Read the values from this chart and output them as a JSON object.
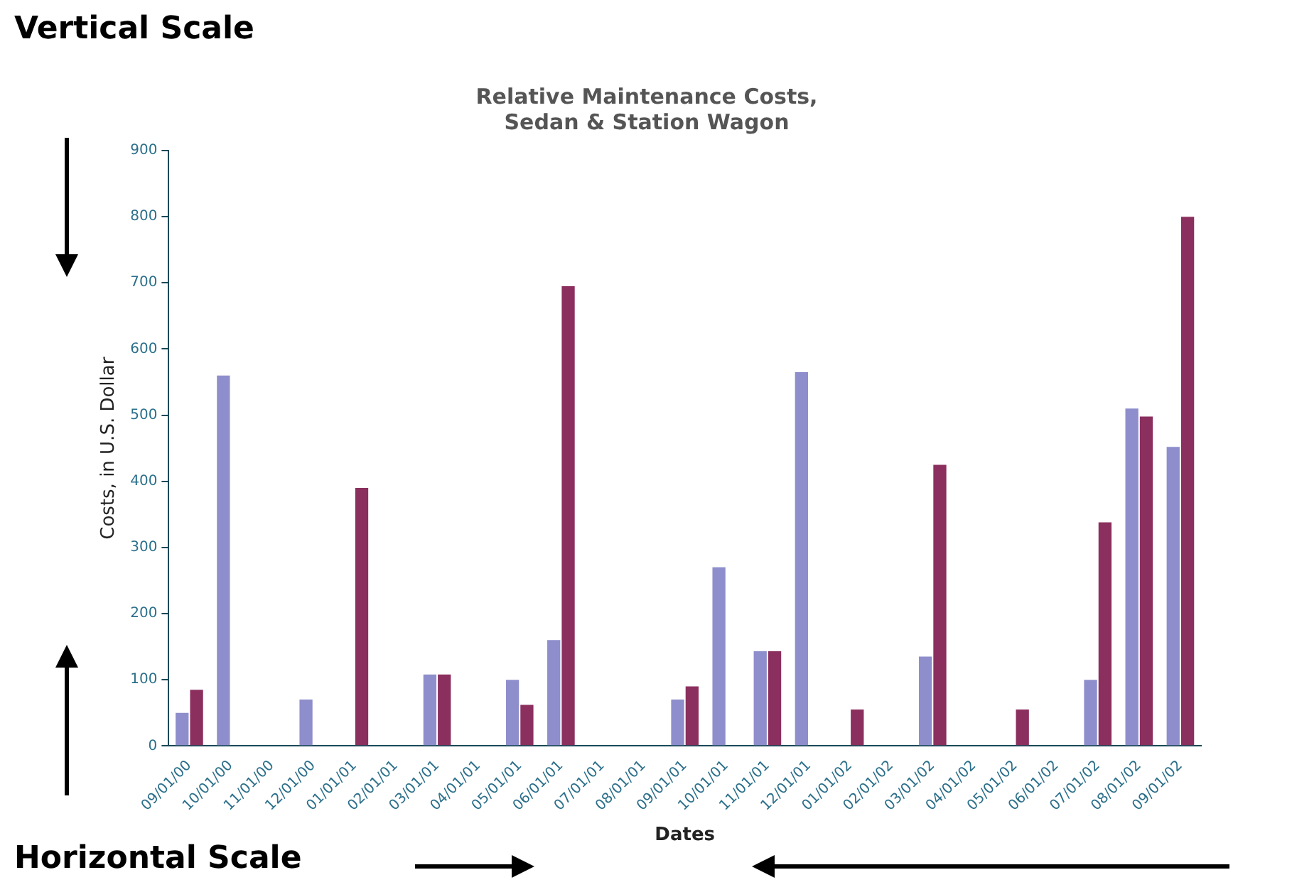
{
  "chart_data": {
    "type": "bar",
    "title": "Relative Maintenance Costs,\nSedan & Station Wagon",
    "xlabel": "Dates",
    "ylabel": "Costs, in U.S. Dollar",
    "annotations": [
      "Vertical Scale",
      "Horizontal Scale"
    ],
    "categories": [
      "09/01/00",
      "10/01/00",
      "11/01/00",
      "12/01/00",
      "01/01/01",
      "02/01/01",
      "03/01/01",
      "04/01/01",
      "05/01/01",
      "06/01/01",
      "07/01/01",
      "08/01/01",
      "09/01/01",
      "10/01/01",
      "11/01/01",
      "12/01/01",
      "01/01/02",
      "02/01/02",
      "03/01/02",
      "04/01/02",
      "05/01/02",
      "06/01/02",
      "07/01/02",
      "08/01/02",
      "09/01/02"
    ],
    "series": [
      {
        "color": "#8e8ecc",
        "values": [
          50,
          560,
          0,
          70,
          0,
          0,
          108,
          0,
          100,
          160,
          0,
          0,
          70,
          270,
          143,
          565,
          0,
          0,
          135,
          0,
          0,
          0,
          100,
          510,
          452
        ]
      },
      {
        "color": "#8b2f5e",
        "values": [
          85,
          0,
          0,
          0,
          390,
          0,
          108,
          0,
          62,
          695,
          0,
          0,
          90,
          0,
          143,
          0,
          55,
          0,
          425,
          0,
          55,
          0,
          338,
          498,
          800
        ]
      }
    ],
    "ylim": [
      0,
      900
    ],
    "yticks": [
      0,
      100,
      200,
      300,
      400,
      500,
      600,
      700,
      800,
      900
    ],
    "grid": false,
    "legend": false
  }
}
